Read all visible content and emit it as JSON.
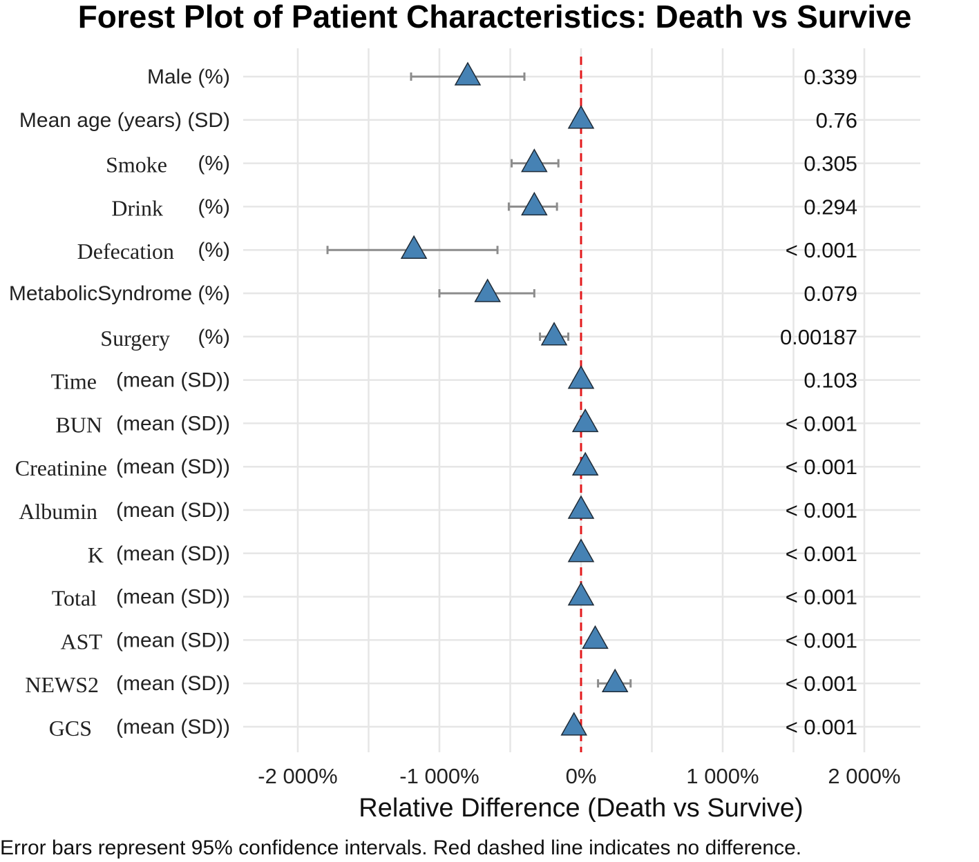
{
  "chart_data": {
    "type": "forest",
    "title": "Forest Plot of Patient Characteristics: Death vs Survive",
    "xlabel": "Relative Difference (Death vs Survive)",
    "caption": "Error bars represent 95% confidence intervals. Red dashed line indicates no difference.",
    "xlim": [
      -2000,
      2000
    ],
    "x_ticks": [
      {
        "value": -2000,
        "label": "-2 000%"
      },
      {
        "value": -1000,
        "label": "-1 000%"
      },
      {
        "value": 0,
        "label": "0%"
      },
      {
        "value": 1000,
        "label": "1 000%"
      },
      {
        "value": 2000,
        "label": "2 000%"
      }
    ],
    "reference_line": 0,
    "reference_color": "#e31a1c",
    "marker_color": "#4682b4",
    "rows": [
      {
        "name": "Male",
        "suffix": "(%)",
        "estimate": -800,
        "lower": -1200,
        "upper": -400,
        "p": "0.339"
      },
      {
        "name": "Mean age (years)",
        "suffix": "(SD)",
        "estimate": 0,
        "lower": null,
        "upper": null,
        "p": "0.76"
      },
      {
        "name": "Smoke",
        "suffix": "(%)",
        "estimate": -330,
        "lower": -490,
        "upper": -160,
        "p": "0.305"
      },
      {
        "name": "Drink",
        "suffix": "(%)",
        "estimate": -330,
        "lower": -510,
        "upper": -170,
        "p": "0.294"
      },
      {
        "name": "Defecation",
        "suffix": "(%)",
        "estimate": -1180,
        "lower": -1790,
        "upper": -590,
        "p": "< 0.001"
      },
      {
        "name": "MetabolicSyndrome",
        "suffix": "(%)",
        "estimate": -660,
        "lower": -1000,
        "upper": -330,
        "p": "0.079"
      },
      {
        "name": "Surgery",
        "suffix": "(%)",
        "estimate": -190,
        "lower": -290,
        "upper": -90,
        "p": "0.00187"
      },
      {
        "name": "Time",
        "suffix": "(mean (SD))",
        "estimate": 0,
        "lower": null,
        "upper": null,
        "p": "0.103"
      },
      {
        "name": "BUN",
        "suffix": "(mean (SD))",
        "estimate": 30,
        "lower": null,
        "upper": null,
        "p": "< 0.001"
      },
      {
        "name": "Creatinine",
        "suffix": "(mean (SD))",
        "estimate": 30,
        "lower": null,
        "upper": null,
        "p": "< 0.001"
      },
      {
        "name": "Albumin",
        "suffix": "(mean (SD))",
        "estimate": 0,
        "lower": null,
        "upper": null,
        "p": "< 0.001"
      },
      {
        "name": "K",
        "suffix": "(mean (SD))",
        "estimate": 0,
        "lower": null,
        "upper": null,
        "p": "< 0.001"
      },
      {
        "name": "Total",
        "suffix": "(mean (SD))",
        "estimate": 0,
        "lower": null,
        "upper": null,
        "p": "< 0.001"
      },
      {
        "name": "AST",
        "suffix": "(mean (SD))",
        "estimate": 100,
        "lower": null,
        "upper": null,
        "p": "< 0.001"
      },
      {
        "name": "NEWS2",
        "suffix": "(mean (SD))",
        "estimate": 240,
        "lower": 120,
        "upper": 350,
        "p": "< 0.001"
      },
      {
        "name": "GCS",
        "suffix": "(mean (SD))",
        "estimate": -50,
        "lower": null,
        "upper": null,
        "p": "< 0.001"
      }
    ]
  }
}
